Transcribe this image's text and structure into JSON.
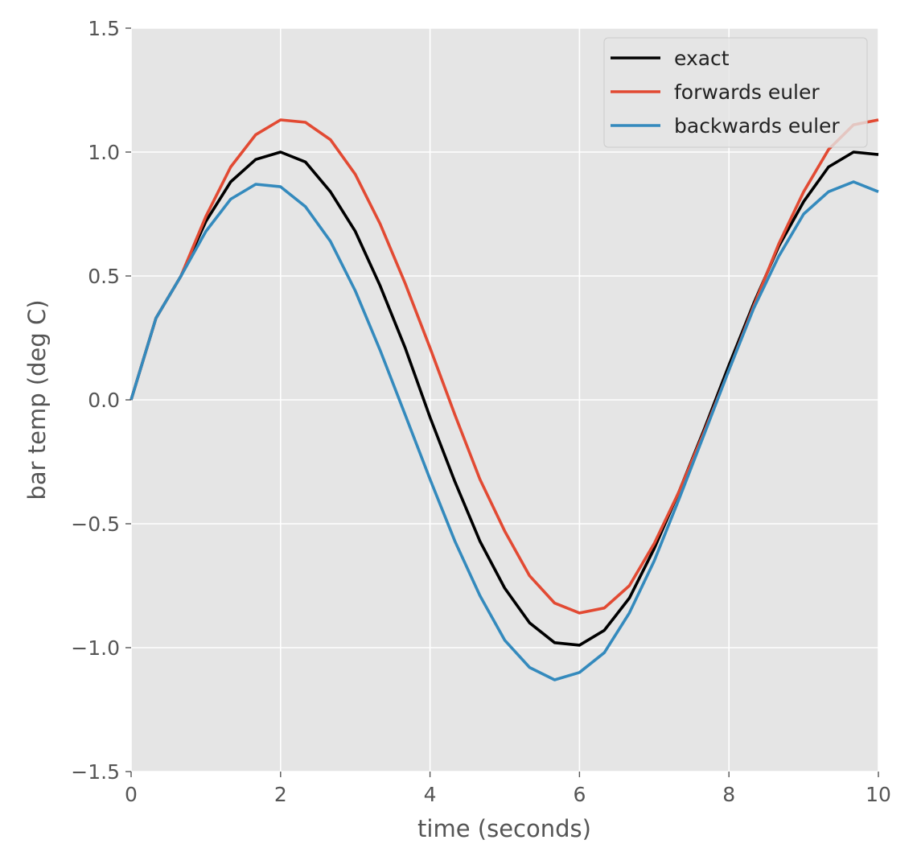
{
  "chart_data": {
    "type": "line",
    "title": "",
    "xlabel": "time (seconds)",
    "ylabel": "bar temp (deg C)",
    "xlim": [
      0,
      10
    ],
    "ylim": [
      -1.5,
      1.5
    ],
    "xticks": [
      0,
      2,
      4,
      6,
      8,
      10
    ],
    "xtick_labels": [
      "0",
      "2",
      "4",
      "6",
      "8",
      "10"
    ],
    "yticks": [
      1.5,
      1.0,
      0.5,
      0.0,
      -0.5,
      -1.0,
      -1.5
    ],
    "ytick_labels": [
      "1.5",
      "1.0",
      "0.5",
      "0.0",
      "−0.5",
      "−1.0",
      "−1.5"
    ],
    "grid": true,
    "style": "ggplot",
    "legend_position": "upper right",
    "x": [
      0,
      0.333,
      0.667,
      1,
      1.333,
      1.667,
      2,
      2.333,
      2.667,
      3,
      3.333,
      3.667,
      4,
      4.333,
      4.667,
      5,
      5.333,
      5.667,
      6,
      6.333,
      6.667,
      7,
      7.333,
      7.667,
      8,
      8.333,
      8.667,
      9,
      9.333,
      9.667,
      10
    ],
    "series": [
      {
        "name": "exact",
        "color": "#000000",
        "values": [
          0.0,
          0.33,
          0.5,
          0.72,
          0.88,
          0.97,
          1.0,
          0.96,
          0.84,
          0.68,
          0.46,
          0.21,
          -0.07,
          -0.33,
          -0.57,
          -0.76,
          -0.9,
          -0.98,
          -0.99,
          -0.93,
          -0.8,
          -0.6,
          -0.37,
          -0.12,
          0.14,
          0.39,
          0.62,
          0.8,
          0.94,
          1.0,
          0.99
        ]
      },
      {
        "name": "forwards euler",
        "color": "#E24A33",
        "values": [
          0.0,
          0.33,
          0.5,
          0.74,
          0.94,
          1.07,
          1.13,
          1.12,
          1.05,
          0.91,
          0.71,
          0.47,
          0.21,
          -0.06,
          -0.32,
          -0.53,
          -0.71,
          -0.82,
          -0.86,
          -0.84,
          -0.75,
          -0.58,
          -0.37,
          -0.13,
          0.12,
          0.38,
          0.63,
          0.84,
          1.01,
          1.11,
          1.13
        ]
      },
      {
        "name": "backwards euler",
        "color": "#348ABD",
        "values": [
          0.0,
          0.33,
          0.5,
          0.68,
          0.81,
          0.87,
          0.86,
          0.78,
          0.64,
          0.44,
          0.2,
          -0.06,
          -0.32,
          -0.57,
          -0.79,
          -0.97,
          -1.08,
          -1.13,
          -1.1,
          -1.02,
          -0.86,
          -0.65,
          -0.4,
          -0.14,
          0.12,
          0.37,
          0.58,
          0.75,
          0.84,
          0.88,
          0.84
        ]
      }
    ]
  }
}
